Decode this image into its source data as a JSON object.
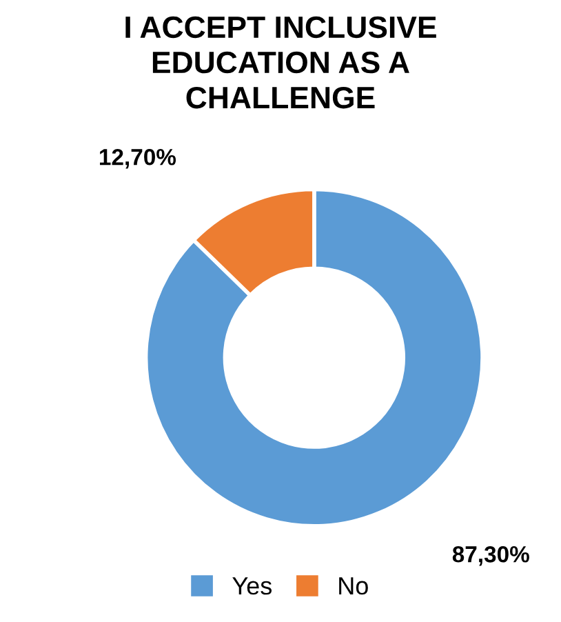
{
  "chart_data": {
    "type": "donut",
    "title": "I ACCEPT INCLUSIVE\nEDUCATION AS A\nCHALLENGE",
    "categories": [
      "Yes",
      "No"
    ],
    "values": [
      87.3,
      12.7
    ],
    "colors": [
      "#5b9bd5",
      "#ed7d31"
    ],
    "value_labels": [
      "87,30%",
      "12,70%"
    ],
    "legend": "bottom"
  }
}
